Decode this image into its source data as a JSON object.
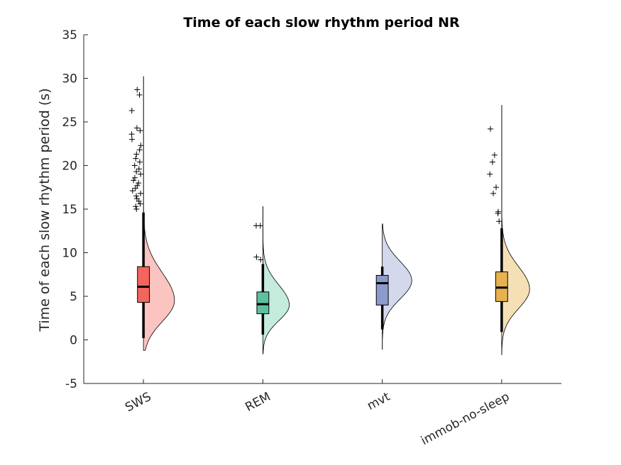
{
  "chart_data": {
    "type": "raincloud",
    "title": "Time of each slow rhythm period NR",
    "xlabel": "",
    "ylabel": "Time of each slow rhythm period (s)",
    "ylim": [
      -5,
      35
    ],
    "yticks": [
      -5,
      0,
      5,
      10,
      15,
      20,
      25,
      30,
      35
    ],
    "grid": false,
    "categories": [
      "SWS",
      "REM",
      "mvt",
      "immob-no-sleep"
    ],
    "groups": [
      {
        "name": "SWS",
        "color": "#f4655d",
        "fill": "#fbc4c0",
        "density": {
          "range": [
            -1.2,
            30.2
          ],
          "mode": 4.5,
          "peak": 1.0,
          "sd_low": 2.4,
          "sd_high": 3.2
        },
        "box": {
          "q1": 4.3,
          "median": 6.1,
          "q3": 8.4,
          "whisker_low": 0.2,
          "whisker_high": 14.6
        },
        "outliers": [
          15.0,
          15.3,
          15.6,
          15.9,
          16.2,
          16.5,
          16.8,
          17.1,
          17.4,
          17.7,
          18.0,
          18.3,
          18.6,
          19.0,
          19.3,
          19.6,
          20.0,
          20.4,
          20.8,
          21.3,
          21.8,
          22.3,
          23.0,
          23.6,
          24.0,
          24.3,
          26.3,
          28.1,
          28.7
        ]
      },
      {
        "name": "REM",
        "color": "#5dc0a1",
        "fill": "#c5ebdd",
        "density": {
          "range": [
            -1.6,
            15.3
          ],
          "mode": 4.0,
          "peak": 0.85,
          "sd_low": 1.8,
          "sd_high": 2.3
        },
        "box": {
          "q1": 3.0,
          "median": 4.1,
          "q3": 5.5,
          "whisker_low": 0.6,
          "whisker_high": 8.7
        },
        "outliers": [
          9.2,
          9.5,
          13.1,
          13.1
        ]
      },
      {
        "name": "mvt",
        "color": "#8c9bcd",
        "fill": "#d3d8ed",
        "density": {
          "range": [
            -1.1,
            13.3
          ],
          "mode": 6.8,
          "peak": 0.95,
          "sd_low": 2.1,
          "sd_high": 2.2
        },
        "box": {
          "q1": 4.0,
          "median": 6.5,
          "q3": 7.4,
          "whisker_low": 1.2,
          "whisker_high": 8.4
        },
        "outliers": []
      },
      {
        "name": "immob-no-sleep",
        "color": "#e6b24f",
        "fill": "#f5dfb5",
        "density": {
          "range": [
            -1.7,
            26.9
          ],
          "mode": 5.8,
          "peak": 0.9,
          "sd_low": 2.2,
          "sd_high": 2.6
        },
        "box": {
          "q1": 4.4,
          "median": 6.0,
          "q3": 7.8,
          "whisker_low": 0.9,
          "whisker_high": 12.8
        },
        "outliers": [
          13.6,
          14.5,
          14.7,
          16.8,
          17.5,
          19.0,
          20.4,
          21.2,
          24.2
        ]
      }
    ]
  }
}
